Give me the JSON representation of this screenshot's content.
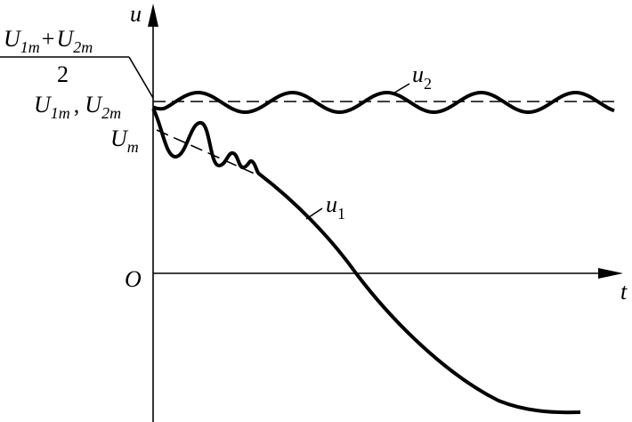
{
  "axes": {
    "y_label": "u",
    "x_label": "t",
    "origin": "O"
  },
  "labels": {
    "average": {
      "numerator": [
        {
          "base": "U",
          "sub": "1m"
        },
        "+",
        {
          "base": "U",
          "sub": "2m"
        }
      ],
      "denominator": "2"
    },
    "amplitudes": [
      {
        "base": "U",
        "sub": "1m"
      },
      ",",
      {
        "base": "U",
        "sub": "2m"
      }
    ],
    "envelope": {
      "base": "U",
      "sub": "m"
    }
  },
  "curves": {
    "u1": {
      "base": "u",
      "sub": "1"
    },
    "u2": {
      "base": "u",
      "sub": "2"
    }
  }
}
